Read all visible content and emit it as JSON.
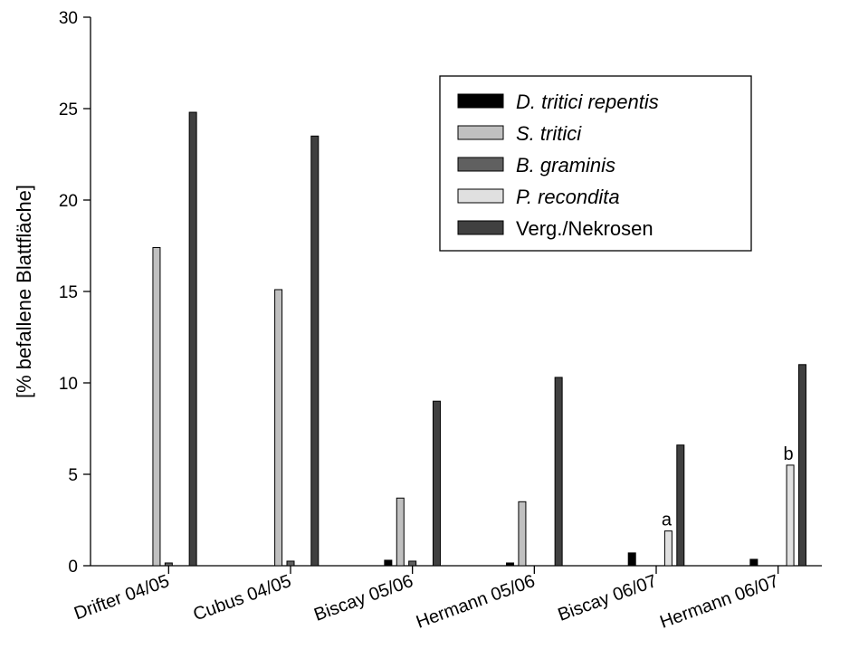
{
  "chart_data": {
    "type": "bar",
    "title": "",
    "xlabel": "",
    "ylabel": "[% befallene Blattfläche]",
    "ylim": [
      0,
      30
    ],
    "yticks": [
      "0",
      "5",
      "10",
      "15",
      "20",
      "25",
      "30"
    ],
    "grid": false,
    "legend_position": "top-right",
    "categories": [
      "Drifter 04/05",
      "Cubus 04/05",
      "Biscay 05/06",
      "Hermann 05/06",
      "Biscay 06/07",
      "Hermann 06/07"
    ],
    "series": [
      {
        "name": "D. tritici repentis",
        "italic": true,
        "color": "#000000",
        "values": [
          0,
          0,
          0.3,
          0.15,
          0.7,
          0.35
        ]
      },
      {
        "name": "S. tritici",
        "italic": true,
        "color": "#c0c0c0",
        "values": [
          17.4,
          15.1,
          3.7,
          3.5,
          0,
          0
        ]
      },
      {
        "name": "B. graminis",
        "italic": true,
        "color": "#606060",
        "values": [
          0.15,
          0.25,
          0.25,
          0,
          0,
          0
        ]
      },
      {
        "name": "P. recondita",
        "italic": true,
        "color": "#e0e0e0",
        "values": [
          0,
          0,
          0,
          0,
          1.9,
          5.5
        ]
      },
      {
        "name": "Verg./Nekrosen",
        "italic": false,
        "color": "#404040",
        "values": [
          24.8,
          23.5,
          9.0,
          10.3,
          6.6,
          11.0
        ]
      }
    ],
    "annotations": [
      {
        "text": "a",
        "category": "Biscay 06/07",
        "series": "P. recondita"
      },
      {
        "text": "b",
        "category": "Hermann 06/07",
        "series": "P. recondita"
      }
    ]
  }
}
